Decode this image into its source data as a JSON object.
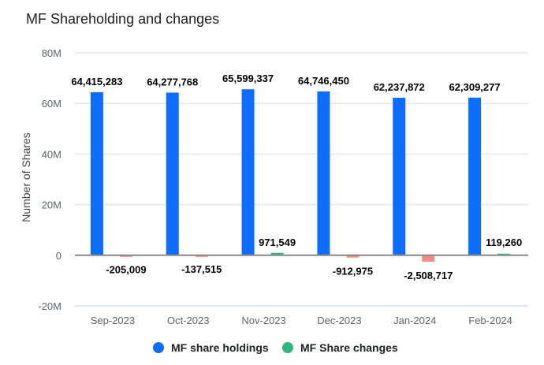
{
  "chart_data": {
    "type": "bar",
    "title": "MF Shareholding and changes",
    "xlabel": "",
    "ylabel": "Number of Shares",
    "ylim": [
      -20000000,
      80000000
    ],
    "yticks": [
      {
        "value": 80000000,
        "label": "80M"
      },
      {
        "value": 60000000,
        "label": "60M"
      },
      {
        "value": 40000000,
        "label": "40M"
      },
      {
        "value": 20000000,
        "label": "20M"
      },
      {
        "value": 0,
        "label": "0"
      },
      {
        "value": -20000000,
        "label": "-20M"
      }
    ],
    "grid": true,
    "legend_position": "bottom",
    "categories": [
      "Sep-2023",
      "Oct-2023",
      "Nov-2023",
      "Dec-2023",
      "Jan-2024",
      "Feb-2024"
    ],
    "series": [
      {
        "name": "MF share holdings",
        "color": "#0d6efd",
        "values": [
          64415283,
          64277768,
          65599337,
          64746450,
          62237872,
          62309277
        ],
        "labels": [
          "64,415,283",
          "64,277,768",
          "65,599,337",
          "64,746,450",
          "62,237,872",
          "62,309,277"
        ]
      },
      {
        "name": "MF Share changes",
        "color": "#2eb67d",
        "negative_color": "#f28b82",
        "values": [
          -205009,
          -137515,
          971549,
          -912975,
          -2508717,
          119260
        ],
        "labels": [
          "-205,009",
          "-137,515",
          "971,549",
          "-912,975",
          "-2,508,717",
          "119,260"
        ]
      }
    ]
  }
}
